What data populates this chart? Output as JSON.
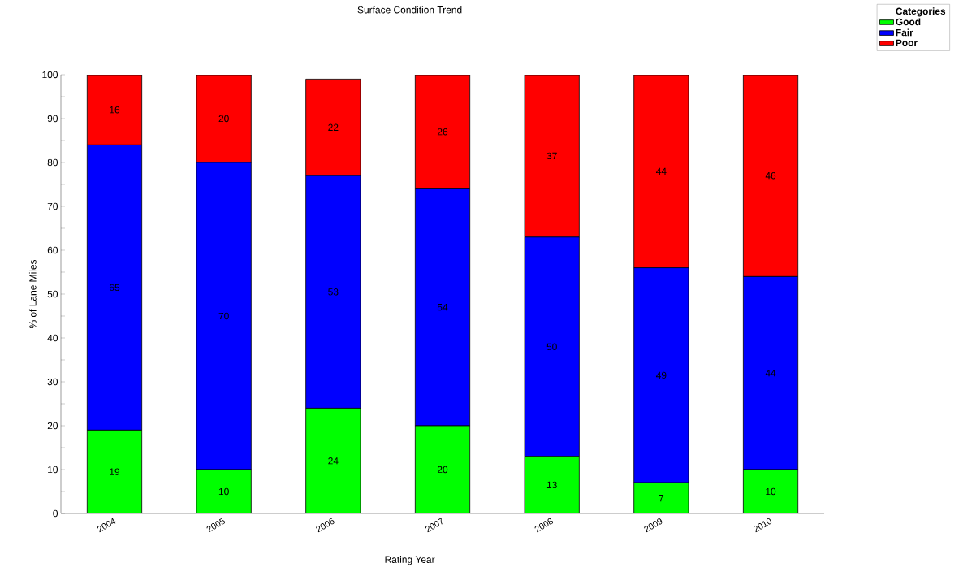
{
  "chart_data": {
    "type": "bar",
    "stacked": true,
    "title": "Surface Condition Trend",
    "xlabel": "Rating Year",
    "ylabel": "% of Lane Miles",
    "legend_title": "Categories",
    "legend": "top right",
    "data_labels": true,
    "categories": [
      "2004",
      "2005",
      "2006",
      "2007",
      "2008",
      "2009",
      "2010"
    ],
    "ylim": [
      0,
      100
    ],
    "yticks": [
      0,
      {
        "value": 5,
        "label": null
      },
      10,
      {
        "value": 15,
        "label": null
      },
      20,
      {
        "value": 25,
        "label": null
      },
      30,
      {
        "value": 35,
        "label": null
      },
      40,
      {
        "value": 45,
        "label": null
      },
      50,
      {
        "value": 55,
        "label": null
      },
      60,
      {
        "value": 65,
        "label": null
      },
      70,
      {
        "value": 75,
        "label": null
      },
      80,
      {
        "value": 85,
        "label": null
      },
      90,
      {
        "value": 95,
        "label": null
      },
      100
    ],
    "series": [
      {
        "name": "Good",
        "color": "#00ff00",
        "values": [
          19,
          10,
          24,
          20,
          13,
          7,
          10
        ]
      },
      {
        "name": "Fair",
        "color": "#0000ff",
        "values": [
          65,
          70,
          53,
          54,
          50,
          49,
          44
        ]
      },
      {
        "name": "Poor",
        "color": "#ff0000",
        "values": [
          16,
          20,
          22,
          26,
          37,
          44,
          46
        ]
      }
    ]
  }
}
